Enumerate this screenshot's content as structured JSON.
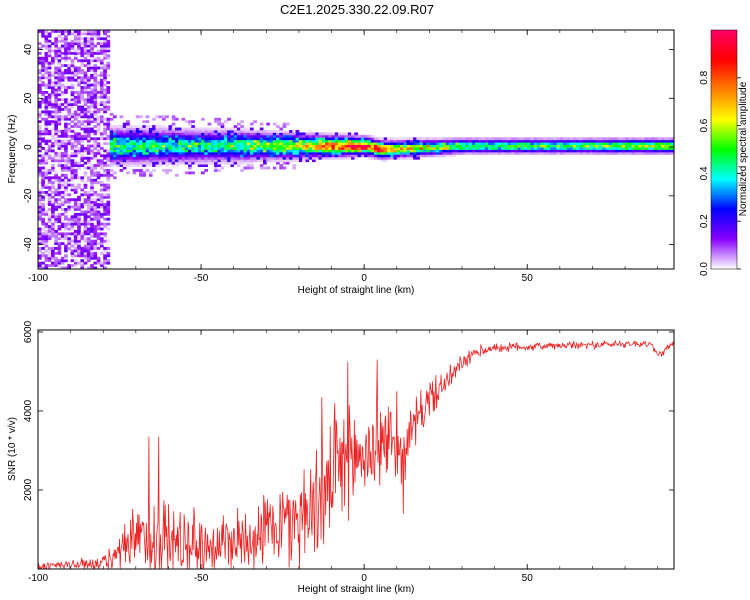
{
  "title": "C2E1.2025.330.22.09.R07",
  "chart_data": [
    {
      "type": "heatmap",
      "xlabel": "Height of straight line (km)",
      "ylabel": "Frequency (Hz)",
      "xlim": [
        -100,
        95
      ],
      "ylim": [
        -50,
        48
      ],
      "xticks": [
        -100,
        -50,
        0,
        50
      ],
      "yticks": [
        -40,
        -20,
        0,
        20,
        40
      ],
      "colorbar": {
        "label": "Normalized spectral amplitude",
        "range": [
          0.0,
          1.0
        ],
        "ticks": [
          "0.0",
          "0.2",
          "0.4",
          "0.6",
          "0.8"
        ],
        "colormap": [
          "#ffffff",
          "#8800ff",
          "#0000ff",
          "#00ffff",
          "#00ff00",
          "#ffff00",
          "#ff7f00",
          "#ff0000",
          "#ff0066"
        ]
      },
      "noise_region_x": [
        -100,
        -78
      ],
      "band": {
        "center_freq_hz": [
          [
            -78,
            0
          ],
          [
            -20,
            0
          ],
          [
            0,
            0
          ],
          [
            5,
            -1.5
          ],
          [
            30,
            0
          ],
          [
            95,
            0
          ]
        ],
        "half_width_hz": [
          [
            -78,
            6
          ],
          [
            -40,
            5
          ],
          [
            -20,
            4
          ],
          [
            0,
            3
          ],
          [
            30,
            2.5
          ],
          [
            95,
            2.5
          ]
        ],
        "peak_amplitude": [
          [
            -78,
            0.45
          ],
          [
            -50,
            0.4
          ],
          [
            -20,
            0.6
          ],
          [
            -5,
            0.9
          ],
          [
            5,
            0.95
          ],
          [
            10,
            0.7
          ],
          [
            30,
            0.5
          ],
          [
            60,
            0.5
          ],
          [
            95,
            0.6
          ]
        ]
      }
    },
    {
      "type": "line",
      "xlabel": "Height of straight line (km)",
      "ylabel": "SNR (10 * v/v)",
      "xlim": [
        -100,
        95
      ],
      "ylim": [
        0,
        6050
      ],
      "xticks": [
        -100,
        -50,
        0,
        50
      ],
      "yticks": [
        2000,
        4000,
        6000
      ],
      "series": [
        {
          "color": "#ee2222",
          "baseline": [
            [
              -100,
              60
            ],
            [
              -80,
              150
            ],
            [
              -76,
              300
            ],
            [
              -70,
              700
            ],
            [
              -60,
              700
            ],
            [
              -50,
              600
            ],
            [
              -40,
              700
            ],
            [
              -30,
              1000
            ],
            [
              -20,
              1300
            ],
            [
              -12,
              1900
            ],
            [
              -5,
              2700
            ],
            [
              0,
              2900
            ],
            [
              8,
              3300
            ],
            [
              12,
              2900
            ],
            [
              15,
              3600
            ],
            [
              20,
              4300
            ],
            [
              25,
              4700
            ],
            [
              30,
              5200
            ],
            [
              35,
              5500
            ],
            [
              40,
              5600
            ],
            [
              60,
              5650
            ],
            [
              80,
              5700
            ],
            [
              88,
              5700
            ],
            [
              90,
              5400
            ],
            [
              95,
              5700
            ]
          ],
          "noise": [
            [
              -100,
              120
            ],
            [
              -80,
              200
            ],
            [
              -76,
              500
            ],
            [
              -66,
              1300
            ],
            [
              -50,
              900
            ],
            [
              -30,
              1000
            ],
            [
              -20,
              1400
            ],
            [
              -10,
              1600
            ],
            [
              0,
              1400
            ],
            [
              10,
              900
            ],
            [
              20,
              500
            ],
            [
              30,
              250
            ],
            [
              40,
              120
            ],
            [
              95,
              100
            ]
          ],
          "spikes": [
            [
              -66,
              3350
            ],
            [
              -63,
              3350
            ],
            [
              -13,
              4350
            ],
            [
              -9,
              4200
            ],
            [
              -5,
              5250
            ],
            [
              4,
              5300
            ],
            [
              10,
              4500
            ],
            [
              12,
              1400
            ]
          ]
        }
      ]
    }
  ]
}
